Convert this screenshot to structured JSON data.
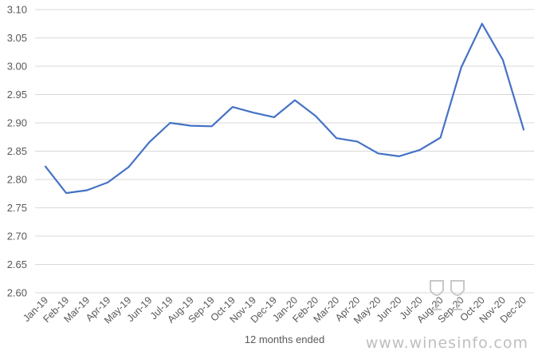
{
  "chart_data": {
    "type": "line",
    "title": "",
    "xlabel": "12 months ended",
    "ylabel": "",
    "ylim": [
      2.6,
      3.1
    ],
    "yticks": [
      "2.60",
      "2.65",
      "2.70",
      "2.75",
      "2.80",
      "2.85",
      "2.90",
      "2.95",
      "3.00",
      "3.05",
      "3.10"
    ],
    "grid": true,
    "legend": "none",
    "categories": [
      "Jan-19",
      "Feb-19",
      "Mar-19",
      "Apr-19",
      "May-19",
      "Jun-19",
      "Jul-19",
      "Aug-19",
      "Sep-19",
      "Oct-19",
      "Nov-19",
      "Dec-19",
      "Jan-20",
      "Feb-20",
      "Mar-20",
      "Apr-20",
      "May-20",
      "Jun-20",
      "Jul-20",
      "Aug-20",
      "Sep-20",
      "Oct-20",
      "Nov-20",
      "Dec-20"
    ],
    "series": [
      {
        "values": [
          2.823,
          2.776,
          2.781,
          2.795,
          2.822,
          2.866,
          2.9,
          2.895,
          2.894,
          2.928,
          2.918,
          2.91,
          2.94,
          2.912,
          2.873,
          2.867,
          2.846,
          2.841,
          2.852,
          2.874,
          2.998,
          3.075,
          3.011,
          2.888
        ],
        "color": "#4472c4"
      }
    ]
  },
  "watermark": {
    "text": "www.winesinfo.com",
    "logo_icon": "wine-glass-logo-icon"
  }
}
